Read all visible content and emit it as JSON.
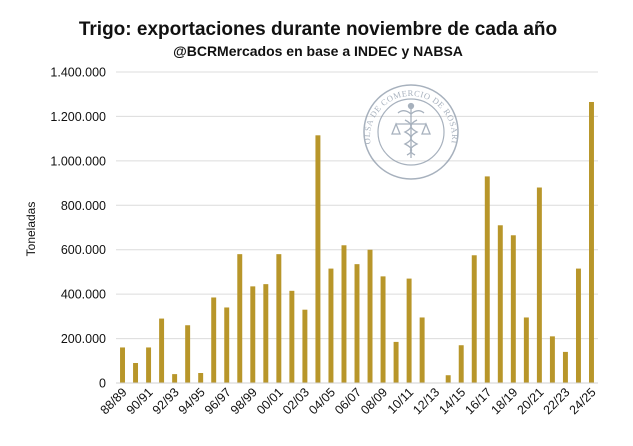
{
  "chart_data": {
    "type": "bar",
    "title": "Trigo: exportaciones durante noviembre de cada año",
    "subtitle": "@BCRMercados en base a INDEC y NABSA",
    "ylabel": "Toneladas",
    "xlabel": "",
    "ylim": [
      0,
      1400000
    ],
    "yticks": [
      0,
      200000,
      400000,
      600000,
      800000,
      1000000,
      1200000,
      1400000
    ],
    "ytick_labels": [
      "0",
      "200.000",
      "400.000",
      "600.000",
      "800.000",
      "1.000.000",
      "1.200.000",
      "1.400.000"
    ],
    "grid": true,
    "bar_color": "#b8962a",
    "categories": [
      "88/89",
      "89/90",
      "90/91",
      "91/92",
      "92/93",
      "93/94",
      "94/95",
      "95/96",
      "96/97",
      "97/98",
      "98/99",
      "99/00",
      "00/01",
      "01/02",
      "02/03",
      "03/04",
      "04/05",
      "05/06",
      "06/07",
      "07/08",
      "08/09",
      "09/10",
      "10/11",
      "11/12",
      "12/13",
      "13/14",
      "14/15",
      "15/16",
      "16/17",
      "17/18",
      "18/19",
      "19/20",
      "20/21",
      "21/22",
      "22/23",
      "23/24",
      "24/25"
    ],
    "visible_tick_labels": [
      "88/89",
      "90/91",
      "92/93",
      "94/95",
      "96/97",
      "98/99",
      "00/01",
      "02/03",
      "04/05",
      "06/07",
      "08/09",
      "10/11",
      "12/13",
      "14/15",
      "16/17",
      "18/19",
      "20/21",
      "22/23",
      "24/25"
    ],
    "values": [
      160000,
      90000,
      160000,
      290000,
      40000,
      260000,
      45000,
      385000,
      340000,
      580000,
      435000,
      445000,
      580000,
      415000,
      330000,
      1115000,
      515000,
      620000,
      535000,
      600000,
      480000,
      185000,
      470000,
      295000,
      0,
      35000,
      170000,
      575000,
      930000,
      710000,
      665000,
      295000,
      880000,
      210000,
      140000,
      515000,
      1265000
    ]
  },
  "watermark": {
    "text": "BOLSA DE COMERCIO DE ROSARIO",
    "color": "#8a97a8"
  }
}
